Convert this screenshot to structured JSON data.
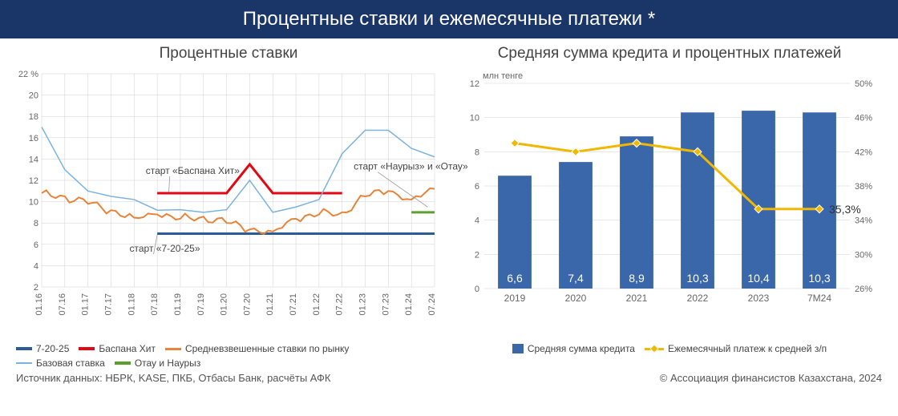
{
  "header_title": "Процентные ставки и ежемесячные платежи *",
  "left_chart": {
    "title": "Процентные ставки",
    "type": "line",
    "ylim": [
      2,
      22
    ],
    "ytick_step": 2,
    "y_unit": "%",
    "x_labels": [
      "01.16",
      "07.16",
      "01.17",
      "07.17",
      "01.18",
      "07.18",
      "01.19",
      "07.19",
      "01.20",
      "07.20",
      "01.21",
      "07.21",
      "01.22",
      "07.22",
      "01.23",
      "07.23",
      "01.24",
      "07.24"
    ],
    "grid_color": "#d0d0d0",
    "background_color": "#ffffff",
    "axis_fontsize": 11,
    "annotations": [
      {
        "text": "старт «7-20-25»",
        "x_idx": 3.8,
        "y": 5.3,
        "line_to_x": 5.0,
        "line_to_y": 6.9
      },
      {
        "text": "старт «Баспана Хит»",
        "x_idx": 4.5,
        "y": 12.6,
        "line_to_x": 5.5,
        "line_to_y": 10.9
      },
      {
        "text": "старт «Наурыз» и «Отау»",
        "x_idx": 13.5,
        "y": 13.0,
        "line_to_x": 16.7,
        "line_to_y": 9.5
      }
    ],
    "series": [
      {
        "name": "7-20-25",
        "label": "7-20-25",
        "color": "#2a5c9a",
        "width": 3,
        "data": [
          null,
          null,
          null,
          null,
          null,
          7,
          7,
          7,
          7,
          7,
          7,
          7,
          7,
          7,
          7,
          7,
          7,
          7
        ]
      },
      {
        "name": "Баспана Хит",
        "label": "Баспана Хит",
        "color": "#e30613",
        "width": 3,
        "data": [
          null,
          null,
          null,
          null,
          null,
          10.8,
          10.8,
          10.8,
          10.8,
          13.5,
          10.8,
          10.8,
          10.8,
          10.8,
          null,
          null,
          null,
          null
        ]
      },
      {
        "name": "Средневзвешенные ставки по рынку",
        "label": "Средневзвешенные ставки по рынку",
        "color": "#e8833a",
        "width": 2,
        "data": [
          10.8,
          10.5,
          9.8,
          9.2,
          8.5,
          8.8,
          8.4,
          8.6,
          8.0,
          7.4,
          7.2,
          8.4,
          8.8,
          9.0,
          10.5,
          11.0,
          10.2,
          11.2
        ],
        "noise": 0.6
      },
      {
        "name": "Базовая ставка",
        "label": "Базовая ставка",
        "color": "#7bb3e0",
        "width": 1.5,
        "data": [
          17,
          13,
          11,
          10.5,
          10.2,
          9.2,
          9.25,
          9.0,
          9.25,
          12,
          9,
          9.5,
          10.2,
          14.5,
          16.7,
          16.7,
          15.0,
          14.2
        ]
      },
      {
        "name": "Отау и Наурыз",
        "label": "Отау и Наурыз",
        "color": "#5aa02c",
        "width": 3,
        "data": [
          null,
          null,
          null,
          null,
          null,
          null,
          null,
          null,
          null,
          null,
          null,
          null,
          null,
          null,
          null,
          null,
          9,
          9
        ]
      }
    ]
  },
  "right_chart": {
    "title": "Средняя сумма кредита и процентных платежей",
    "type": "bar-line",
    "left_ylim": [
      0,
      12
    ],
    "left_ytick_step": 2,
    "left_y_title": "млн тенге",
    "right_ylim": [
      26,
      50
    ],
    "right_ytick_step": 4,
    "right_y_unit": "%",
    "x_labels": [
      "2019",
      "2020",
      "2021",
      "2022",
      "2023",
      "7М24"
    ],
    "bars": {
      "name": "Средняя сумма кредита",
      "label": "Средняя сумма кредита",
      "color": "#3a66aa",
      "values": [
        6.6,
        7.4,
        8.9,
        10.3,
        10.4,
        10.3
      ],
      "value_labels": [
        "6,6",
        "7,4",
        "8,9",
        "10,3",
        "10,4",
        "10,3"
      ],
      "bar_width": 0.55
    },
    "line": {
      "name": "Ежемесячный платеж к средней з/п",
      "label": "Ежемесячный платеж к средней з/п",
      "color": "#f0b800",
      "values": [
        43,
        42,
        43,
        42,
        35.3,
        35.3
      ],
      "marker_size": 7,
      "end_label": "35,3%"
    },
    "grid_color": "#e0e0e0",
    "axis_fontsize": 12
  },
  "footer_left": "Источник данных: НБРК, KASE, ПКБ, Отбасы Банк, расчёты АФК",
  "footer_right": "© Ассоциация финансистов Казахстана, 2024"
}
